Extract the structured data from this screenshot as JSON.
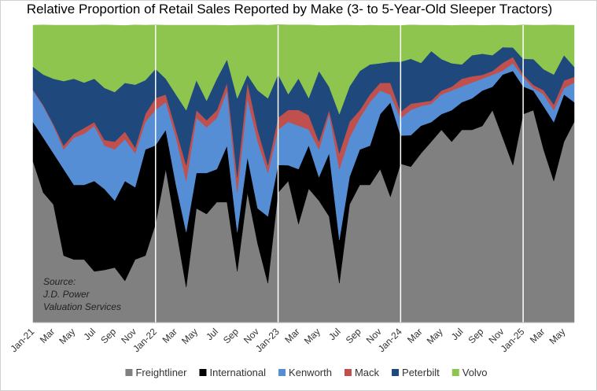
{
  "chart_data": {
    "type": "stacked_area",
    "title": "Relative Proportion of Retail Sales Reported by Make (3- to 5-Year-Old Sleeper Tractors)",
    "source": [
      "Source:",
      "J.D. Power",
      "Valuation Services"
    ],
    "categories": [
      "Jan-21",
      null,
      "Mar",
      null,
      "May",
      null,
      "Jul",
      null,
      "Sep",
      null,
      "Nov",
      null,
      "Jan-22",
      null,
      "Mar",
      null,
      "May",
      null,
      "Jul",
      null,
      "Sep",
      null,
      "Nov",
      null,
      "Jan-23",
      null,
      "Mar",
      null,
      "May",
      null,
      "Jul",
      null,
      "Sep",
      null,
      "Nov",
      null,
      "Jan-24",
      null,
      "Mar",
      null,
      "May",
      null,
      "Jul",
      null,
      "Sep",
      null,
      "Nov",
      null,
      "Jan-25",
      null,
      "Mar",
      null,
      "May",
      null
    ],
    "ylim": [
      0,
      100
    ],
    "legend": "bottom",
    "series": [
      {
        "name": "Freightliner",
        "color": "#808080",
        "values": [
          54.2,
          43.7,
          39.7,
          22.5,
          21.2,
          21.2,
          17.2,
          17.7,
          18.5,
          14.0,
          21.2,
          22.5,
          33.1,
          51.6,
          31.7,
          11.9,
          38.4,
          36.5,
          40.5,
          40.5,
          17.2,
          43.7,
          26.5,
          13.2,
          43.7,
          47.6,
          33.1,
          45.0,
          41.0,
          35.7,
          13.2,
          39.7,
          46.3,
          46.3,
          51.6,
          42.3,
          53.4,
          52.4,
          56.9,
          60.8,
          64.8,
          60.8,
          64.8,
          64.8,
          66.1,
          71.4,
          62.2,
          52.9,
          70.1,
          71.4,
          58.2,
          47.6,
          60.8,
          67.5
        ]
      },
      {
        "name": "International",
        "color": "#000000",
        "values": [
          13.2,
          18.5,
          17.2,
          29.1,
          25.1,
          25.1,
          30.4,
          27.2,
          22.5,
          33.6,
          24.3,
          35.7,
          26.5,
          13.2,
          14.6,
          18.5,
          11.9,
          13.8,
          11.1,
          19.0,
          13.2,
          11.9,
          11.9,
          22.5,
          9.3,
          5.3,
          18.5,
          14.6,
          7.9,
          21.2,
          14.6,
          9.3,
          11.9,
          13.2,
          18.5,
          31.7,
          9.5,
          10.6,
          9.3,
          6.6,
          5.3,
          10.6,
          9.3,
          10.6,
          11.9,
          7.9,
          21.2,
          31.7,
          9.3,
          6.6,
          14.6,
          19.8,
          15.9,
          6.6
        ]
      },
      {
        "name": "Kenworth",
        "color": "#558ed5",
        "values": [
          10.6,
          10.6,
          9.3,
          6.6,
          15.9,
          17.2,
          18.5,
          14.6,
          17.2,
          14.0,
          11.4,
          9.3,
          11.9,
          9.3,
          15.9,
          17.2,
          18.5,
          15.3,
          17.2,
          18.5,
          13.2,
          19.8,
          22.5,
          14.6,
          11.9,
          14.6,
          14.6,
          5.3,
          9.3,
          13.2,
          23.8,
          13.2,
          10.6,
          14.6,
          7.9,
          2.6,
          5.8,
          8.5,
          6.6,
          6.1,
          6.6,
          6.6,
          5.3,
          5.3,
          4.0,
          4.0,
          1.3,
          2.6,
          3.2,
          0.8,
          4.0,
          4.0,
          2.1,
          6.6
        ]
      },
      {
        "name": "Mack",
        "color": "#c0504d",
        "values": [
          0.3,
          0.3,
          0.5,
          1.3,
          1.3,
          1.9,
          1.3,
          1.9,
          2.6,
          2.6,
          1.9,
          2.6,
          4.0,
          2.6,
          2.6,
          5.3,
          2.6,
          2.4,
          2.6,
          2.6,
          5.3,
          5.3,
          4.0,
          2.6,
          4.0,
          4.0,
          5.3,
          4.8,
          2.6,
          1.3,
          5.3,
          5.3,
          2.6,
          2.6,
          2.6,
          4.0,
          2.1,
          2.1,
          1.3,
          1.1,
          1.3,
          1.3,
          2.6,
          2.1,
          1.3,
          1.3,
          2.6,
          2.1,
          0.8,
          1.1,
          1.3,
          1.9,
          2.6,
          1.9
        ]
      },
      {
        "name": "Peterbilt",
        "color": "#1f497d",
        "values": [
          7.7,
          10.3,
          15.3,
          21.7,
          18.5,
          15.3,
          14.6,
          17.5,
          16.7,
          16.4,
          21.2,
          11.4,
          9.8,
          5.3,
          11.9,
          18.5,
          10.1,
          6.6,
          10.6,
          7.9,
          26.5,
          2.6,
          13.2,
          22.5,
          14.6,
          5.3,
          10.6,
          5.8,
          23.8,
          7.9,
          13.2,
          11.9,
          13.2,
          10.1,
          6.6,
          7.1,
          16.9,
          15.1,
          13.2,
          16.7,
          10.6,
          7.9,
          4.8,
          7.1,
          7.1,
          5.3,
          5.3,
          3.2,
          5.3,
          8.7,
          7.1,
          10.1,
          8.5,
          3.4
        ]
      },
      {
        "name": "Volvo",
        "color": "#8dc54f",
        "values": [
          14.0,
          16.7,
          18.0,
          18.8,
          18.0,
          19.3,
          18.0,
          21.2,
          22.5,
          19.3,
          20.1,
          18.5,
          14.8,
          18.0,
          23.3,
          28.6,
          18.5,
          25.4,
          18.0,
          11.4,
          24.6,
          16.7,
          22.0,
          24.6,
          16.7,
          23.3,
          18.0,
          24.6,
          15.3,
          20.6,
          29.9,
          20.6,
          15.3,
          13.2,
          12.7,
          12.2,
          12.2,
          11.4,
          12.7,
          8.7,
          11.4,
          12.7,
          13.2,
          10.1,
          9.5,
          10.1,
          7.4,
          7.4,
          11.4,
          11.4,
          14.8,
          16.7,
          10.1,
          14.0
        ]
      }
    ]
  }
}
